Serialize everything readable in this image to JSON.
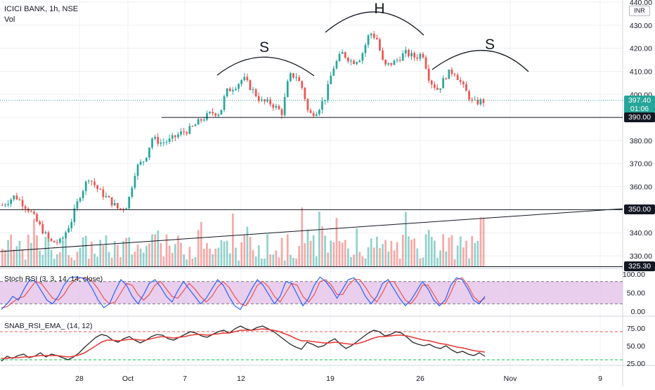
{
  "header": {
    "symbol": "ICICI BANK, 1h, NSE",
    "vol_label": "Vol",
    "currency": "INR"
  },
  "price_scale": {
    "ticks": [
      "440.00",
      "430.00",
      "420.00",
      "410.00",
      "400.00",
      "390.00",
      "380.00",
      "370.00",
      "360.00",
      "350.00",
      "340.00",
      "330.00"
    ],
    "tick_values": [
      440,
      430,
      420,
      410,
      400,
      390,
      380,
      370,
      360,
      350,
      340,
      330
    ],
    "range": [
      323,
      441
    ],
    "badges": [
      {
        "label": "397.40",
        "value": 397.4,
        "color": "#26a69a"
      },
      {
        "label": "01:06",
        "value": 393.6,
        "color": "#26a69a"
      },
      {
        "label": "390.00",
        "value": 390,
        "color": "#131722"
      },
      {
        "label": "350.00",
        "value": 350,
        "color": "#131722"
      },
      {
        "label": "325.30",
        "value": 325.3,
        "color": "#131722"
      }
    ]
  },
  "x_axis": {
    "labels": [
      "28",
      "Oct",
      "7",
      "12",
      "19",
      "26",
      "Nov",
      "9"
    ]
  },
  "annotations": [
    "S",
    "H",
    "S"
  ],
  "colors": {
    "up": "#26a69a",
    "down": "#ef5350",
    "rsi_fill": "#e1bee7",
    "ema": "#e53935",
    "raw": "#2a2a2a"
  },
  "stoch_rsi": {
    "title": "Stoch RSI (3, 3, 14, 14, close)",
    "ticks": [
      "100.00",
      "50.00",
      "0.00"
    ],
    "bands": [
      80,
      20
    ],
    "k": [
      5,
      20,
      40,
      30,
      60,
      85,
      80,
      55,
      30,
      20,
      40,
      70,
      90,
      92,
      90,
      85,
      60,
      30,
      10,
      20,
      55,
      85,
      70,
      40,
      20,
      45,
      75,
      85,
      65,
      40,
      25,
      55,
      80,
      60,
      40,
      20,
      35,
      60,
      85,
      70,
      40,
      15,
      5,
      30,
      60,
      85,
      70,
      45,
      20,
      40,
      80,
      75,
      45,
      15,
      35,
      70,
      92,
      80,
      60,
      35,
      60,
      85,
      90,
      70,
      40,
      20,
      40,
      75,
      85,
      60,
      35,
      15,
      30,
      55,
      80,
      60,
      30,
      15,
      30,
      70,
      90,
      85,
      60,
      30,
      20,
      40
    ],
    "d": [
      10,
      12,
      25,
      35,
      40,
      60,
      80,
      75,
      55,
      35,
      30,
      45,
      70,
      85,
      90,
      90,
      80,
      60,
      35,
      20,
      25,
      50,
      75,
      70,
      45,
      30,
      45,
      70,
      80,
      60,
      40,
      35,
      55,
      75,
      60,
      40,
      25,
      40,
      65,
      80,
      65,
      40,
      20,
      15,
      40,
      70,
      80,
      65,
      40,
      25,
      50,
      75,
      70,
      40,
      25,
      45,
      80,
      85,
      70,
      45,
      45,
      70,
      85,
      85,
      65,
      40,
      25,
      50,
      80,
      80,
      55,
      30,
      20,
      40,
      70,
      70,
      45,
      20,
      20,
      50,
      85,
      90,
      70,
      40,
      25,
      35
    ]
  },
  "snab_rsi": {
    "title": "SNAB_RSI_EMA_ (14, 12)",
    "ticks": [
      "75.00",
      "50.00",
      "25.00"
    ],
    "bands": [
      70,
      30
    ],
    "raw": [
      28,
      35,
      32,
      36,
      38,
      33,
      35,
      40,
      34,
      38,
      36,
      33,
      30,
      34,
      40,
      48,
      55,
      62,
      66,
      64,
      58,
      55,
      60,
      63,
      58,
      54,
      58,
      63,
      66,
      65,
      60,
      58,
      62,
      66,
      70,
      68,
      64,
      62,
      66,
      70,
      72,
      68,
      74,
      78,
      74,
      72,
      76,
      78,
      74,
      70,
      64,
      58,
      52,
      48,
      45,
      55,
      52,
      48,
      50,
      56,
      60,
      52,
      46,
      50,
      56,
      62,
      68,
      72,
      70,
      64,
      66,
      70,
      68,
      62,
      55,
      52,
      50,
      52,
      48,
      46,
      50,
      44,
      40,
      42,
      38,
      36,
      40,
      35
    ],
    "ema": [
      32,
      32,
      33,
      33,
      34,
      34,
      35,
      36,
      36,
      36,
      36,
      35,
      34,
      35,
      37,
      40,
      45,
      50,
      55,
      58,
      58,
      57,
      58,
      59,
      59,
      58,
      58,
      60,
      62,
      63,
      62,
      61,
      62,
      63,
      65,
      66,
      66,
      65,
      66,
      67,
      68,
      68,
      70,
      72,
      72,
      72,
      73,
      74,
      73,
      72,
      70,
      67,
      64,
      60,
      57,
      57,
      56,
      55,
      54,
      54,
      55,
      54,
      53,
      52,
      53,
      55,
      58,
      61,
      63,
      63,
      64,
      65,
      65,
      64,
      62,
      60,
      58,
      57,
      55,
      53,
      52,
      50,
      48,
      47,
      45,
      43,
      42,
      41
    ]
  }
}
